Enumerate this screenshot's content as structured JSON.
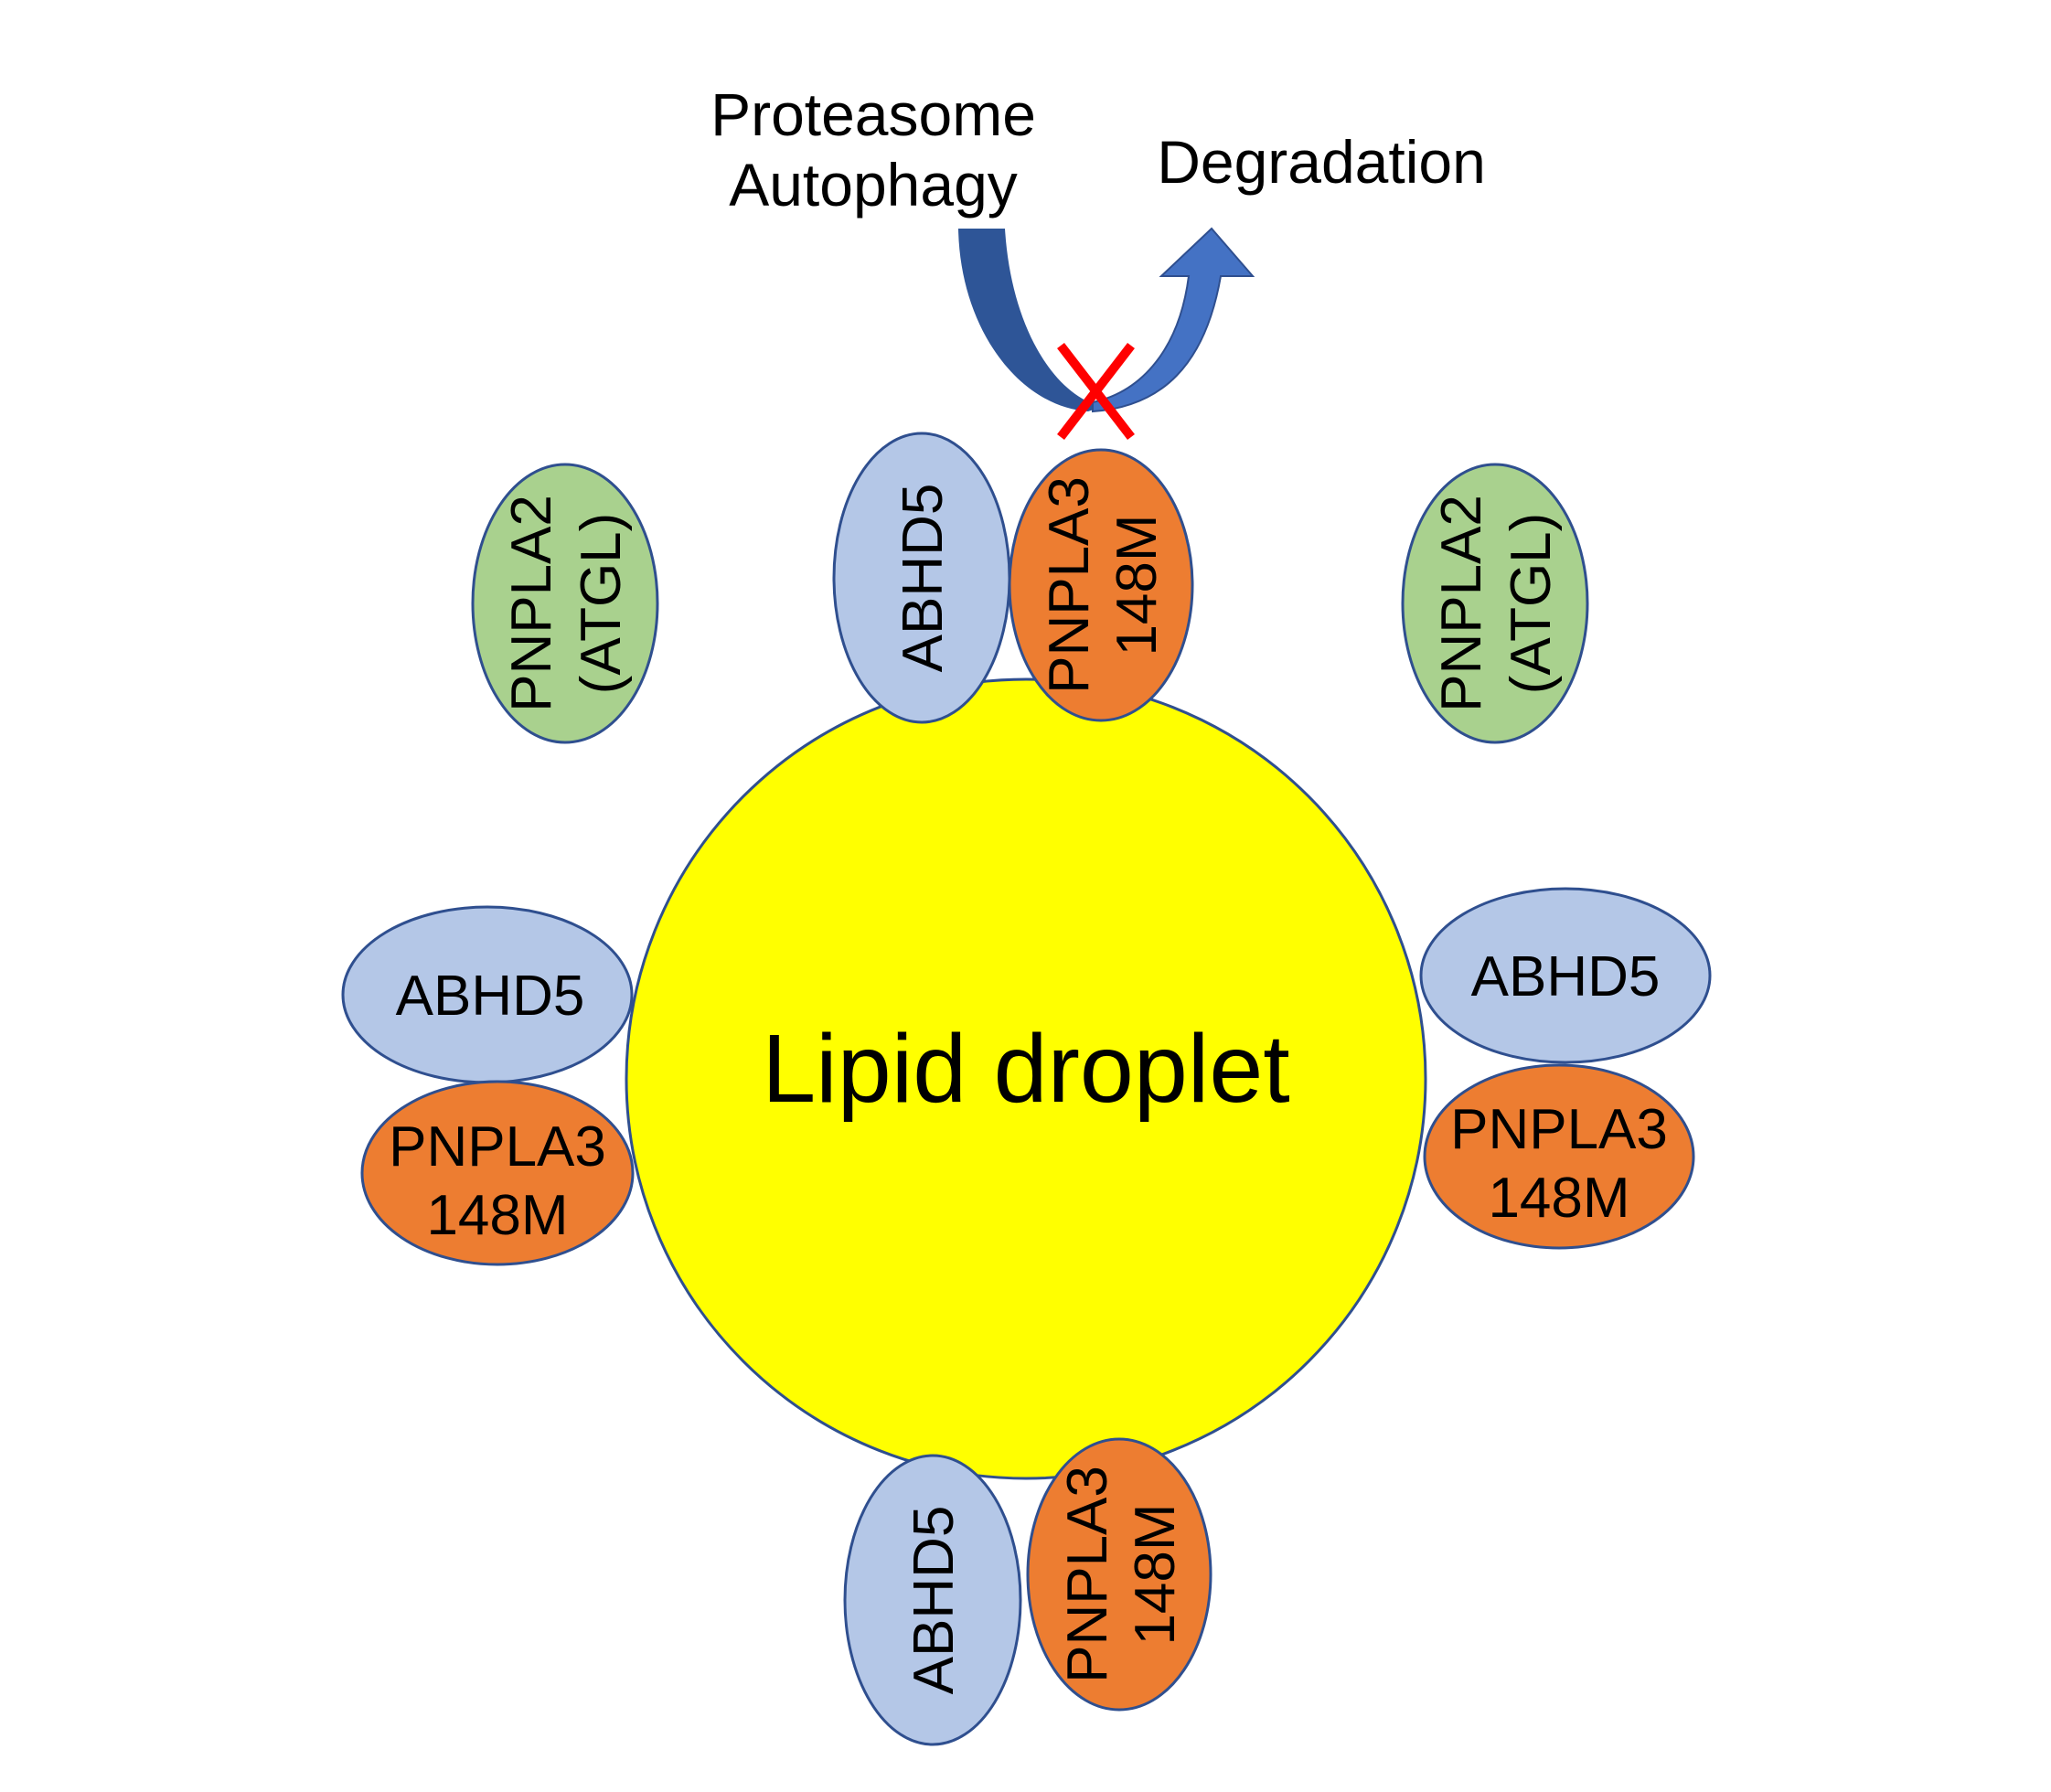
{
  "colors": {
    "lipid_fill": "#ffff00",
    "abhd5_fill": "#b4c7e7",
    "pnpla3_fill": "#ed7d31",
    "pnpla2_fill": "#a9d18e",
    "outline": "#2f4f8f",
    "arrow_dark": "#2e5597",
    "arrow_light": "#4472c4",
    "cross": "#ff0000"
  },
  "header": {
    "pathway_line1": "Proteasome",
    "pathway_line2": "Autophagy",
    "degradation": "Degradation"
  },
  "lipid_droplet": {
    "label": "Lipid droplet"
  },
  "proteins": {
    "pnpla2_left": {
      "line1": "PNPLA2",
      "line2": "(ATGL)"
    },
    "pnpla2_right": {
      "line1": "PNPLA2",
      "line2": "(ATGL)"
    },
    "abhd5_top": {
      "line1": "ABHD5"
    },
    "pnpla3_top": {
      "line1": "PNPLA3",
      "line2": "148M"
    },
    "abhd5_left": {
      "line1": "ABHD5"
    },
    "pnpla3_left": {
      "line1": "PNPLA3",
      "line2": "148M"
    },
    "abhd5_right": {
      "line1": "ABHD5"
    },
    "pnpla3_right": {
      "line1": "PNPLA3",
      "line2": "148M"
    },
    "abhd5_bottom": {
      "line1": "ABHD5"
    },
    "pnpla3_bottom": {
      "line1": "PNPLA3",
      "line2": "148M"
    }
  }
}
